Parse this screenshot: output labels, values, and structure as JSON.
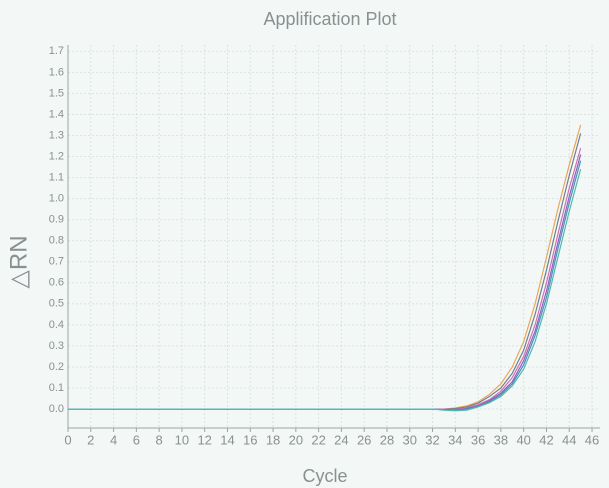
{
  "chart_data": {
    "type": "line",
    "title": "Applification Plot",
    "x_label": "Cycle",
    "y_label": "△RN",
    "x": [
      0,
      1,
      2,
      3,
      4,
      5,
      6,
      7,
      8,
      9,
      10,
      11,
      12,
      13,
      14,
      15,
      16,
      17,
      18,
      19,
      20,
      21,
      22,
      23,
      24,
      25,
      26,
      27,
      28,
      29,
      30,
      31,
      32,
      33,
      34,
      35,
      36,
      37,
      38,
      39,
      40,
      41,
      42,
      43,
      44,
      45
    ],
    "series": [
      {
        "color": "#e9a65a",
        "values": [
          0,
          0,
          0,
          0,
          0,
          0,
          0,
          0,
          0,
          0,
          0,
          0,
          0,
          0,
          0,
          0,
          0,
          0,
          0,
          0,
          0,
          0,
          0,
          0,
          0,
          0,
          0,
          0,
          0,
          0,
          0,
          0,
          0,
          0,
          0.005,
          0.015,
          0.035,
          0.07,
          0.12,
          0.2,
          0.32,
          0.5,
          0.72,
          0.95,
          1.16,
          1.35
        ]
      },
      {
        "color": "#6f7f8f",
        "values": [
          0,
          0,
          0,
          0,
          0,
          0,
          0,
          0,
          0,
          0,
          0,
          0,
          0,
          0,
          0,
          0,
          0,
          0,
          0,
          0,
          0,
          0,
          0,
          0,
          0,
          0,
          0,
          0,
          0,
          0,
          0,
          0,
          0,
          0,
          0.002,
          0.01,
          0.028,
          0.06,
          0.1,
          0.17,
          0.28,
          0.45,
          0.66,
          0.89,
          1.11,
          1.31
        ]
      },
      {
        "color": "#d070b0",
        "values": [
          0,
          0,
          0,
          0,
          0,
          0,
          0,
          0,
          0,
          0,
          0,
          0,
          0,
          0,
          0,
          0,
          0,
          0,
          0,
          0,
          0,
          0,
          0,
          0,
          0,
          0,
          0,
          0,
          0,
          0,
          0,
          0,
          0,
          0,
          -0.003,
          0.005,
          0.02,
          0.045,
          0.085,
          0.15,
          0.25,
          0.4,
          0.6,
          0.83,
          1.05,
          1.24
        ]
      },
      {
        "color": "#8a60c0",
        "values": [
          0,
          0,
          0,
          0,
          0,
          0,
          0,
          0,
          0,
          0,
          0,
          0,
          0,
          0,
          0,
          0,
          0,
          0,
          0,
          0,
          0,
          0,
          0,
          0,
          0,
          0,
          0,
          0,
          0,
          0,
          0,
          0,
          0,
          -0.002,
          -0.005,
          0.002,
          0.015,
          0.04,
          0.075,
          0.13,
          0.23,
          0.37,
          0.56,
          0.79,
          1.01,
          1.21
        ]
      },
      {
        "color": "#4a90b8",
        "values": [
          0,
          0,
          0,
          0,
          0,
          0,
          0,
          0,
          0,
          0,
          0,
          0,
          0,
          0,
          0,
          0,
          0,
          0,
          0,
          0,
          0,
          0,
          0,
          0,
          0,
          0,
          0,
          0,
          0,
          0,
          0,
          0,
          0,
          -0.003,
          -0.006,
          0,
          0.012,
          0.035,
          0.068,
          0.12,
          0.21,
          0.35,
          0.53,
          0.76,
          0.98,
          1.18
        ]
      },
      {
        "color": "#50b8b0",
        "values": [
          0,
          0,
          0,
          0,
          0,
          0,
          0,
          0,
          0,
          0,
          0,
          0,
          0,
          0,
          0,
          0,
          0,
          0,
          0,
          0,
          0,
          0,
          0,
          0,
          0,
          0,
          0,
          0,
          0,
          0,
          0,
          0,
          0,
          -0.005,
          -0.008,
          -0.005,
          0.01,
          0.03,
          0.06,
          0.11,
          0.19,
          0.32,
          0.5,
          0.72,
          0.94,
          1.14
        ]
      }
    ],
    "xlim": [
      0,
      46.7
    ],
    "xticks": [
      0,
      2,
      4,
      6,
      8,
      10,
      12,
      14,
      16,
      18,
      20,
      22,
      24,
      26,
      28,
      30,
      32,
      34,
      36,
      38,
      40,
      42,
      44,
      46
    ],
    "ylim": [
      -0.09,
      1.73
    ],
    "yticks": [
      {
        "value": 0,
        "label": "0.0"
      },
      0.1,
      0.2,
      0.3,
      0.4,
      0.5,
      0.6,
      0.7,
      0.8,
      0.9,
      {
        "value": 1,
        "label": "1.0"
      },
      1.1,
      1.2,
      1.3,
      1.4,
      1.5,
      1.6,
      1.7
    ],
    "grid": true
  }
}
